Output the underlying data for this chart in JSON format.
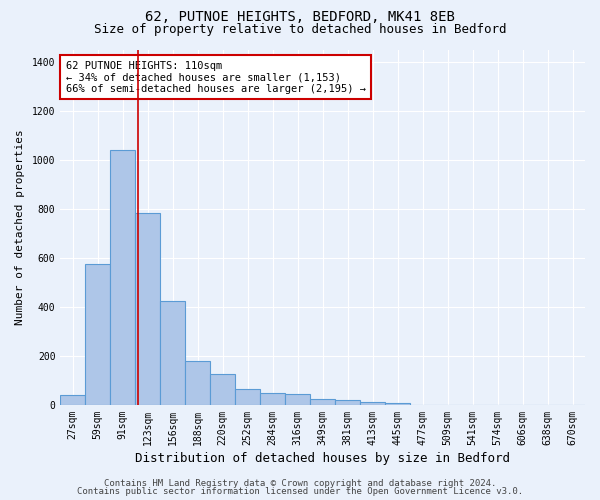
{
  "title1": "62, PUTNOE HEIGHTS, BEDFORD, MK41 8EB",
  "title2": "Size of property relative to detached houses in Bedford",
  "xlabel": "Distribution of detached houses by size in Bedford",
  "ylabel": "Number of detached properties",
  "categories": [
    "27sqm",
    "59sqm",
    "91sqm",
    "123sqm",
    "156sqm",
    "188sqm",
    "220sqm",
    "252sqm",
    "284sqm",
    "316sqm",
    "349sqm",
    "381sqm",
    "413sqm",
    "445sqm",
    "477sqm",
    "509sqm",
    "541sqm",
    "574sqm",
    "606sqm",
    "638sqm",
    "670sqm"
  ],
  "values": [
    40,
    575,
    1040,
    785,
    425,
    180,
    125,
    65,
    50,
    45,
    25,
    20,
    10,
    8,
    0,
    0,
    0,
    0,
    0,
    0,
    0
  ],
  "bar_color": "#aec6e8",
  "bar_edge_color": "#5b9bd5",
  "background_color": "#eaf1fb",
  "grid_color": "#ffffff",
  "red_line_x": 2.6,
  "annotation_line1": "62 PUTNOE HEIGHTS: 110sqm",
  "annotation_line2": "← 34% of detached houses are smaller (1,153)",
  "annotation_line3": "66% of semi-detached houses are larger (2,195) →",
  "annotation_box_color": "#ffffff",
  "annotation_box_edge": "#cc0000",
  "ylim": [
    0,
    1450
  ],
  "yticks": [
    0,
    200,
    400,
    600,
    800,
    1000,
    1200,
    1400
  ],
  "footer1": "Contains HM Land Registry data © Crown copyright and database right 2024.",
  "footer2": "Contains public sector information licensed under the Open Government Licence v3.0.",
  "title1_fontsize": 10,
  "title2_fontsize": 9,
  "xlabel_fontsize": 9,
  "ylabel_fontsize": 8,
  "tick_fontsize": 7,
  "annotation_fontsize": 7.5,
  "footer_fontsize": 6.5
}
